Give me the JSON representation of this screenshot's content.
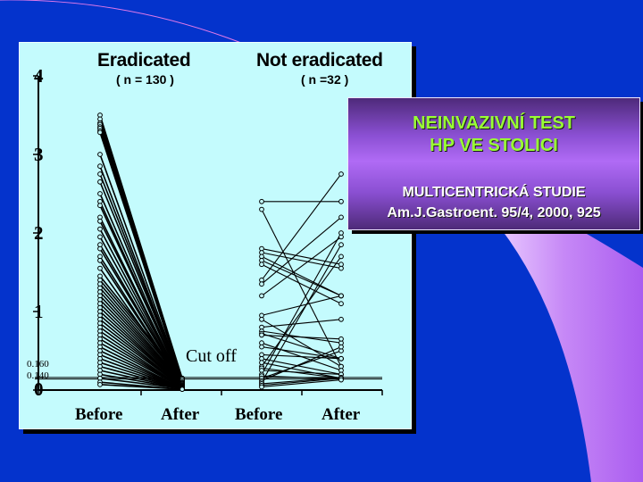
{
  "slide": {
    "background_color": "#0433cc",
    "accent_swoosh_color": "#b066f0",
    "arc_color": "#e27ae8"
  },
  "info_box": {
    "title_line1": "NEINVAZIVNÍ TEST",
    "title_line2": "HP VE STOLICI",
    "subtitle_line1": "MULTICENTRICKÁ STUDIE",
    "subtitle_line2": "Am.J.Gastroent. 95/4, 2000, 925",
    "title_color": "#99ff33",
    "subtitle_color": "#ffffff"
  },
  "chart_data": {
    "type": "line",
    "title": "",
    "panel_color": "#c4fbfd",
    "groups": [
      {
        "name": "Eradicated",
        "n_label": "( n = 130 )",
        "n": 130
      },
      {
        "name": "Not eradicated",
        "n_label": "( n =32 )",
        "n": 32
      }
    ],
    "categories": [
      "Before",
      "After",
      "Before",
      "After"
    ],
    "xlabel": "",
    "ylabel": "",
    "ylim": [
      0,
      4
    ],
    "yticks": [
      "0",
      "1",
      "2",
      "3",
      "4"
    ],
    "cutoff_lines": [
      {
        "value": 0.16,
        "label": "0.160"
      },
      {
        "value": 0.14,
        "label": "0.140"
      }
    ],
    "cutoff_annotation": "Cut off",
    "grid": false,
    "legend": "none",
    "series": [
      {
        "name": "Eradicated",
        "description": "paired before/after values; before spread 0.05-3.5, after all below ~0.2",
        "pairs": [
          [
            3.5,
            0.15
          ],
          [
            3.45,
            0.14
          ],
          [
            3.4,
            0.14
          ],
          [
            3.38,
            0.13
          ],
          [
            3.35,
            0.13
          ],
          [
            3.33,
            0.12
          ],
          [
            3.3,
            0.12
          ],
          [
            3.28,
            0.11
          ],
          [
            3.0,
            0.11
          ],
          [
            2.85,
            0.1
          ],
          [
            2.75,
            0.1
          ],
          [
            2.65,
            0.1
          ],
          [
            2.5,
            0.09
          ],
          [
            2.4,
            0.09
          ],
          [
            2.35,
            0.09
          ],
          [
            2.2,
            0.08
          ],
          [
            2.15,
            0.08
          ],
          [
            2.05,
            0.08
          ],
          [
            1.95,
            0.07
          ],
          [
            1.85,
            0.07
          ],
          [
            1.8,
            0.07
          ],
          [
            1.7,
            0.06
          ],
          [
            1.65,
            0.06
          ],
          [
            1.55,
            0.06
          ],
          [
            1.45,
            0.15
          ],
          [
            1.4,
            0.14
          ],
          [
            1.35,
            0.12
          ],
          [
            1.3,
            0.1
          ],
          [
            1.25,
            0.09
          ],
          [
            1.2,
            0.08
          ],
          [
            1.15,
            0.07
          ],
          [
            1.1,
            0.06
          ],
          [
            1.05,
            0.05
          ],
          [
            1.0,
            0.05
          ],
          [
            0.95,
            0.05
          ],
          [
            0.9,
            0.04
          ],
          [
            0.85,
            0.04
          ],
          [
            0.8,
            0.04
          ],
          [
            0.75,
            0.03
          ],
          [
            0.7,
            0.03
          ],
          [
            0.65,
            0.03
          ],
          [
            0.6,
            0.03
          ],
          [
            0.55,
            0.02
          ],
          [
            0.5,
            0.02
          ],
          [
            0.45,
            0.02
          ],
          [
            0.4,
            0.02
          ],
          [
            0.35,
            0.02
          ],
          [
            0.3,
            0.02
          ],
          [
            0.25,
            0.02
          ],
          [
            0.2,
            0.02
          ],
          [
            0.15,
            0.02
          ],
          [
            0.1,
            0.01
          ],
          [
            0.07,
            0.01
          ]
        ]
      },
      {
        "name": "Not eradicated",
        "description": "paired before/after values; many remain above cut-off",
        "pairs": [
          [
            2.4,
            2.4
          ],
          [
            2.3,
            0.3
          ],
          [
            1.8,
            1.6
          ],
          [
            1.75,
            1.55
          ],
          [
            1.7,
            1.2
          ],
          [
            1.65,
            1.2
          ],
          [
            1.6,
            1.1
          ],
          [
            1.4,
            2.75
          ],
          [
            1.35,
            2.2
          ],
          [
            1.2,
            1.95
          ],
          [
            0.95,
            1.2
          ],
          [
            0.9,
            0.3
          ],
          [
            0.8,
            0.9
          ],
          [
            0.75,
            0.6
          ],
          [
            0.72,
            0.4
          ],
          [
            0.7,
            0.65
          ],
          [
            0.6,
            0.25
          ],
          [
            0.55,
            0.4
          ],
          [
            0.45,
            0.4
          ],
          [
            0.4,
            0.2
          ],
          [
            0.35,
            0.15
          ],
          [
            0.3,
            1.7
          ],
          [
            0.28,
            0.15
          ],
          [
            0.25,
            0.2
          ],
          [
            0.2,
            2.0
          ],
          [
            0.18,
            0.14
          ],
          [
            0.15,
            0.5
          ],
          [
            0.12,
            0.55
          ],
          [
            0.1,
            1.85
          ],
          [
            0.08,
            0.16
          ],
          [
            0.06,
            0.15
          ],
          [
            0.04,
            0.13
          ]
        ]
      }
    ]
  }
}
